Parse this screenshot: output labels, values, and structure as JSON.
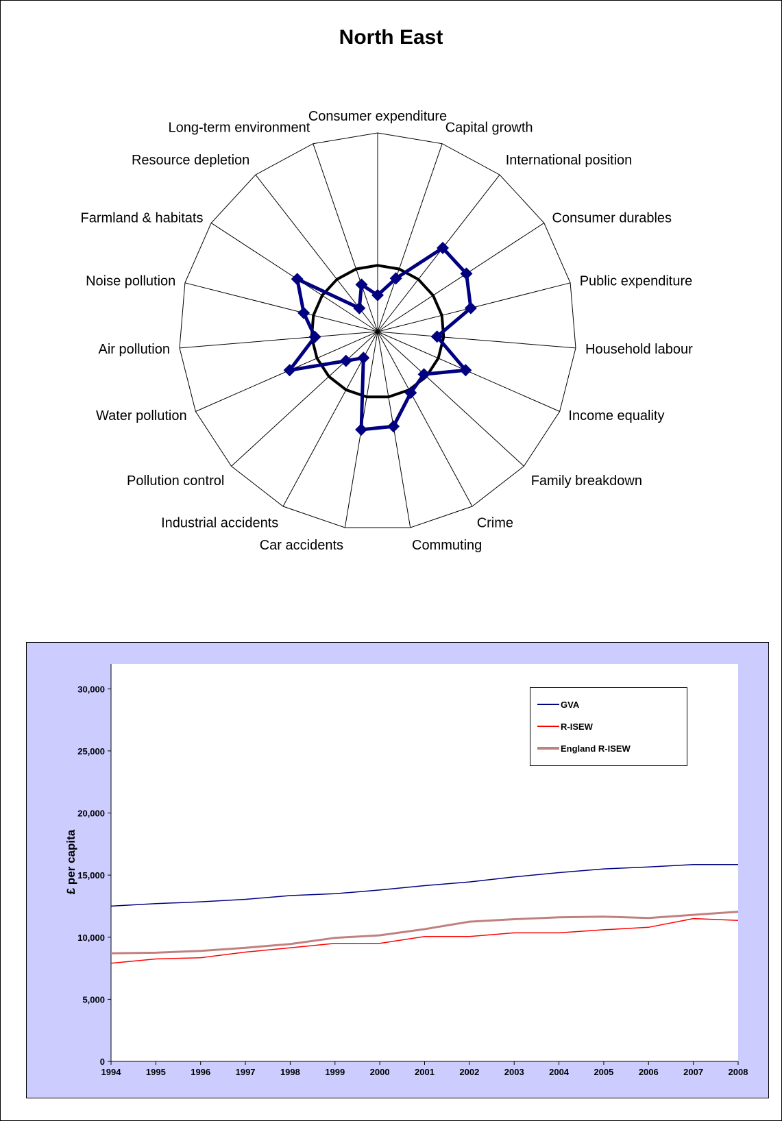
{
  "chart_data": [
    {
      "type": "radar",
      "title": "North East",
      "axes": [
        "Consumer expenditure",
        "Capital growth",
        "International position",
        "Consumer durables",
        "Public expenditure",
        "Household labour",
        "Income equality",
        "Family breakdown",
        "Crime",
        "Commuting",
        "Car accidents",
        "Industrial accidents",
        "Pollution control",
        "Water pollution",
        "Air pollution",
        "Noise pollution",
        "Farmland & habitats",
        "Resource depletion",
        "Long-term environment"
      ],
      "range": [
        0,
        3
      ],
      "reference": 1.0,
      "series": [
        {
          "values": [
            0.55,
            0.85,
            1.6,
            1.6,
            1.45,
            0.9,
            1.45,
            0.95,
            1.05,
            1.45,
            1.5,
            0.45,
            0.65,
            1.45,
            0.95,
            1.15,
            1.45,
            0.45,
            0.75
          ]
        }
      ],
      "colors": {
        "series": "#000080",
        "reference": "#000000",
        "grid": "#000000"
      }
    },
    {
      "type": "line",
      "title": "",
      "ylabel": "£ per capita",
      "xlabel": "",
      "categories": [
        "1994",
        "1995",
        "1996",
        "1997",
        "1998",
        "1999",
        "2000",
        "2001",
        "2002",
        "2003",
        "2004",
        "2005",
        "2006",
        "2007",
        "2008"
      ],
      "ylim": [
        0,
        32000
      ],
      "yticks": [
        0,
        5000,
        10000,
        15000,
        20000,
        25000,
        30000
      ],
      "ytick_labels": [
        "0",
        "5,000",
        "10,000",
        "15,000",
        "20,000",
        "25,000",
        "30,000"
      ],
      "legend_placement": "top-right",
      "grid": false,
      "series": [
        {
          "name": "GVA",
          "color": "#000080",
          "values": [
            12500,
            12700,
            12850,
            13050,
            13350,
            13500,
            13800,
            14150,
            14450,
            14850,
            15200,
            15500,
            15650,
            15850,
            15850
          ]
        },
        {
          "name": "R-ISEW",
          "color": "#ff0000",
          "values": [
            7900,
            8250,
            8350,
            8800,
            9150,
            9500,
            9500,
            10050,
            10050,
            10350,
            10350,
            10600,
            10800,
            11500,
            11350
          ]
        },
        {
          "name": "England R-ISEW",
          "color": "#c08080",
          "values": [
            8700,
            8750,
            8900,
            9150,
            9450,
            9950,
            10150,
            10650,
            11250,
            11450,
            11600,
            11650,
            11550,
            11800,
            12050
          ]
        }
      ]
    }
  ]
}
